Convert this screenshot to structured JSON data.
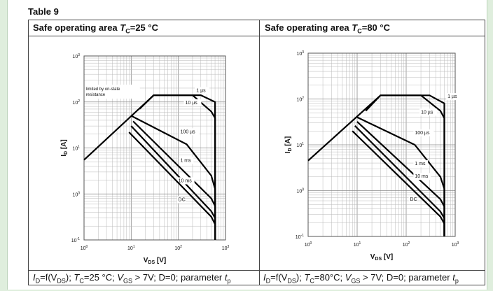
{
  "table_label": "Table 9",
  "charts_header": [
    {
      "pre": "Safe operating area ",
      "t": "T",
      "sub": "C",
      "post": "=25 °C"
    },
    {
      "pre": "Safe operating area ",
      "t": "T",
      "sub": "C",
      "post": "=80 °C"
    }
  ],
  "footers": [
    {
      "a": "I",
      "a_sub": "D",
      "b": "=f(V",
      "b_sub": "DS",
      "c": "); ",
      "d": "T",
      "d_sub": "C",
      "e": "=25 °C; ",
      "f": "V",
      "f_sub": "GS",
      "g": " > 7V; D=0; parameter ",
      "h": "t",
      "h_sub": "p"
    },
    {
      "a": "I",
      "a_sub": "D",
      "b": "=f(V",
      "b_sub": "DS",
      "c": "); ",
      "d": "T",
      "d_sub": "C",
      "e": "=80°C; ",
      "f": "V",
      "f_sub": "GS",
      "g": " > 7V; D=0; parameter ",
      "h": "t",
      "h_sub": "p"
    }
  ],
  "chart_data": [
    {
      "type": "line",
      "log_scale": {
        "x": true,
        "y": true
      },
      "xlabel": {
        "main": "V",
        "sub": "DS",
        "unit": " [V]"
      },
      "ylabel": {
        "main": "I",
        "sub": "D",
        "unit": " [A]"
      },
      "xlim": [
        1,
        1000
      ],
      "ylim": [
        0.1,
        1000
      ],
      "x_ticks": [
        {
          "b": "10",
          "e": "0"
        },
        {
          "b": "10",
          "e": "1"
        },
        {
          "b": "10",
          "e": "2"
        },
        {
          "b": "10",
          "e": "3"
        }
      ],
      "y_ticks": [
        {
          "b": "10",
          "e": "-1"
        },
        {
          "b": "10",
          "e": "0"
        },
        {
          "b": "10",
          "e": "1"
        },
        {
          "b": "10",
          "e": "2"
        },
        {
          "b": "10",
          "e": "3"
        }
      ],
      "grid": true,
      "annotation": {
        "lines": [
          "limited by on-state",
          "resistance"
        ],
        "x": 1.1,
        "y": 180
      },
      "series": [
        {
          "name": "1 µs",
          "points": [
            [
              1,
              5.5
            ],
            [
              30,
              140
            ],
            [
              300,
              140
            ],
            [
              600,
              100
            ],
            [
              600,
              0.1
            ]
          ],
          "label_at": [
            240,
            165
          ]
        },
        {
          "name": "10 µs",
          "points": [
            [
              15,
              70
            ],
            [
              30,
              140
            ],
            [
              200,
              140
            ],
            [
              500,
              62
            ],
            [
              600,
              45
            ],
            [
              600,
              0.1
            ]
          ],
          "label_at": [
            140,
            90
          ]
        },
        {
          "name": "100 µs",
          "points": [
            [
              10,
              50
            ],
            [
              150,
              12
            ],
            [
              500,
              2.5
            ],
            [
              600,
              1.3
            ],
            [
              600,
              0.1
            ]
          ],
          "label_at": [
            110,
            21
          ]
        },
        {
          "name": "1 ms",
          "points": [
            [
              11,
              38
            ],
            [
              500,
              0.8
            ],
            [
              600,
              0.55
            ],
            [
              600,
              0.1
            ]
          ],
          "label_at": [
            110,
            5
          ]
        },
        {
          "name": "10 ms",
          "points": [
            [
              10,
              30
            ],
            [
              500,
              0.42
            ],
            [
              600,
              0.3
            ],
            [
              600,
              0.1
            ]
          ],
          "label_at": [
            100,
            1.8
          ]
        },
        {
          "name": "DC",
          "points": [
            [
              9,
              22
            ],
            [
              500,
              0.32
            ],
            [
              600,
              0.22
            ],
            [
              600,
              0.1
            ]
          ],
          "label_at": [
            100,
            0.7
          ]
        }
      ]
    },
    {
      "type": "line",
      "log_scale": {
        "x": true,
        "y": true
      },
      "xlabel": {
        "main": "V",
        "sub": "DS",
        "unit": " [V]"
      },
      "ylabel": {
        "main": "I",
        "sub": "D",
        "unit": " [A]"
      },
      "xlim": [
        1,
        1000
      ],
      "ylim": [
        0.1,
        1000
      ],
      "x_ticks": [
        {
          "b": "10",
          "e": "0"
        },
        {
          "b": "10",
          "e": "1"
        },
        {
          "b": "10",
          "e": "2"
        },
        {
          "b": "10",
          "e": "3"
        }
      ],
      "y_ticks": [
        {
          "b": "10",
          "e": "-1"
        },
        {
          "b": "10",
          "e": "0"
        },
        {
          "b": "10",
          "e": "1"
        },
        {
          "b": "10",
          "e": "2"
        },
        {
          "b": "10",
          "e": "3"
        }
      ],
      "grid": true,
      "annotation": null,
      "series": [
        {
          "name": "1 µs",
          "points": [
            [
              1,
              4.5
            ],
            [
              30,
              120
            ],
            [
              300,
              120
            ],
            [
              600,
              80
            ],
            [
              600,
              0.1
            ]
          ],
          "label_at": [
            700,
            105
          ]
        },
        {
          "name": "10 µs",
          "points": [
            [
              15,
              55
            ],
            [
              30,
              120
            ],
            [
              200,
              120
            ],
            [
              500,
              55
            ],
            [
              600,
              38
            ],
            [
              600,
              0.1
            ]
          ],
          "label_at": [
            200,
            48
          ]
        },
        {
          "name": "100 µs",
          "points": [
            [
              10,
              40
            ],
            [
              150,
              10
            ],
            [
              500,
              2
            ],
            [
              600,
              1.1
            ],
            [
              600,
              0.1
            ]
          ],
          "label_at": [
            150,
            17
          ]
        },
        {
          "name": "1 ms",
          "points": [
            [
              10,
              32
            ],
            [
              500,
              0.65
            ],
            [
              600,
              0.45
            ],
            [
              600,
              0.1
            ]
          ],
          "label_at": [
            150,
            3.6
          ]
        },
        {
          "name": "10 ms",
          "points": [
            [
              9,
              26
            ],
            [
              500,
              0.35
            ],
            [
              600,
              0.25
            ],
            [
              600,
              0.1
            ]
          ],
          "label_at": [
            150,
            1.9
          ]
        },
        {
          "name": "DC",
          "points": [
            [
              8,
              20
            ],
            [
              500,
              0.27
            ],
            [
              600,
              0.19
            ],
            [
              600,
              0.1
            ]
          ],
          "label_at": [
            120,
            0.6
          ]
        }
      ]
    }
  ]
}
